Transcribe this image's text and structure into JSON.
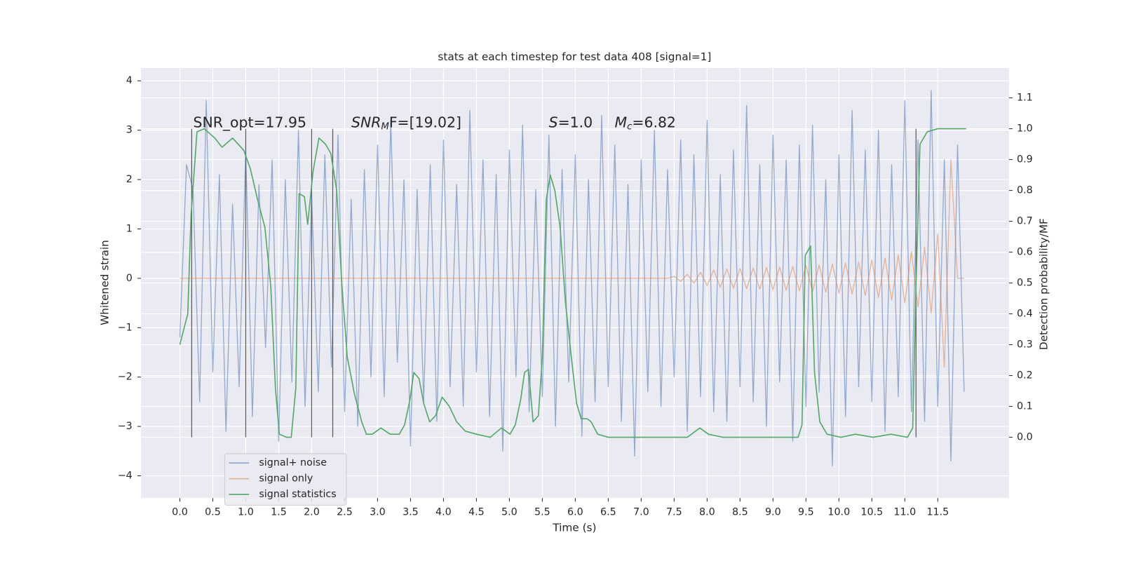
{
  "chart_data": {
    "type": "line",
    "title": "stats at each timestep for test data 408 [signal=1]",
    "xlabel": "Time (s)",
    "ylabel": "Whitened strain",
    "y2label": "Detection probability/MF",
    "x": [
      0.0,
      0.1,
      0.2,
      0.3,
      0.4,
      0.5,
      0.6,
      0.7,
      0.8,
      0.9,
      1.0,
      1.1,
      1.2,
      1.3,
      1.4,
      1.5,
      1.6,
      1.7,
      1.8,
      1.9,
      2.0,
      2.1,
      2.2,
      2.3,
      2.4,
      2.5,
      2.6,
      2.7,
      2.8,
      2.9,
      3.0,
      3.1,
      3.2,
      3.3,
      3.4,
      3.5,
      3.6,
      3.7,
      3.8,
      3.9,
      4.0,
      4.1,
      4.2,
      4.3,
      4.4,
      4.5,
      4.6,
      4.7,
      4.8,
      4.9,
      5.0,
      5.1,
      5.2,
      5.3,
      5.4,
      5.5,
      5.6,
      5.7,
      5.8,
      5.9,
      6.0,
      6.1,
      6.2,
      6.3,
      6.4,
      6.5,
      6.6,
      6.7,
      6.8,
      6.9,
      7.0,
      7.1,
      7.2,
      7.3,
      7.4,
      7.5,
      7.6,
      7.7,
      7.8,
      7.9,
      8.0,
      8.1,
      8.2,
      8.3,
      8.4,
      8.5,
      8.6,
      8.7,
      8.8,
      8.9,
      9.0,
      9.1,
      9.2,
      9.3,
      9.4,
      9.5,
      9.6,
      9.7,
      9.8,
      9.9,
      10.0,
      10.1,
      10.2,
      10.3,
      10.4,
      10.5,
      10.6,
      10.7,
      10.8,
      10.9,
      11.0,
      11.1,
      11.2,
      11.3,
      11.4,
      11.5,
      11.6,
      11.7,
      11.8,
      11.9
    ],
    "series": [
      {
        "name": "signal+ noise",
        "color": "#4c72b0",
        "values": [
          -1.2,
          2.3,
          1.8,
          -2.5,
          3.6,
          -1.9,
          2.1,
          -3.1,
          1.5,
          -2.2,
          2.6,
          -2.8,
          1.9,
          -1.4,
          2.4,
          -3.3,
          2.0,
          -2.1,
          3.0,
          -2.6,
          1.7,
          -2.3,
          2.5,
          -1.8,
          2.9,
          -2.7,
          1.6,
          -3.0,
          2.2,
          -2.0,
          2.7,
          -2.4,
          3.2,
          -1.7,
          2.0,
          -3.4,
          1.8,
          -2.5,
          2.3,
          -2.9,
          2.8,
          -2.2,
          1.9,
          -2.6,
          3.4,
          -1.9,
          2.4,
          -2.8,
          2.1,
          -3.5,
          2.6,
          -2.0,
          3.1,
          -2.7,
          1.8,
          -2.4,
          2.9,
          -3.0,
          2.2,
          -2.1,
          2.5,
          -3.2,
          2.0,
          -2.5,
          3.3,
          -2.2,
          2.7,
          -2.9,
          1.9,
          -3.6,
          2.4,
          -2.3,
          3.0,
          -2.6,
          2.2,
          -2.0,
          2.8,
          -3.1,
          2.5,
          -2.4,
          3.2,
          -2.7,
          2.1,
          -2.9,
          2.6,
          -2.2,
          3.5,
          -2.5,
          2.3,
          -3.0,
          2.9,
          -2.1,
          2.4,
          -3.3,
          2.7,
          -2.6,
          3.1,
          -2.3,
          2.0,
          -3.8,
          2.5,
          -2.8,
          3.4,
          -2.2,
          2.6,
          -2.5,
          3.0,
          -3.1,
          2.3,
          -2.4,
          3.6,
          -2.7,
          2.8,
          -2.9,
          3.8,
          -2.6,
          2.4,
          -3.7,
          2.7,
          -2.3
        ]
      },
      {
        "name": "signal only",
        "color": "#dd8452",
        "values": [
          0,
          0,
          0,
          0,
          0,
          0,
          0,
          0,
          0,
          0,
          0,
          0,
          0,
          0,
          0,
          0,
          0,
          0,
          0,
          0,
          0,
          0,
          0,
          0,
          0,
          0,
          0,
          0,
          0,
          0,
          0,
          0,
          0,
          0,
          0,
          0,
          0,
          0,
          0,
          0,
          0,
          0,
          0,
          0,
          0,
          0,
          0,
          0,
          0,
          0,
          0,
          0,
          0,
          0,
          0,
          0,
          0,
          0,
          0,
          0,
          0,
          0,
          0,
          0,
          0,
          0,
          0,
          0,
          0,
          0,
          0,
          0,
          0,
          0,
          0,
          0.04,
          -0.06,
          0.08,
          -0.1,
          0.12,
          -0.15,
          0.17,
          -0.18,
          0.19,
          -0.2,
          0.2,
          -0.21,
          0.21,
          -0.22,
          0.22,
          -0.23,
          0.23,
          -0.24,
          0.24,
          -0.25,
          0.26,
          -0.27,
          0.27,
          -0.28,
          0.29,
          -0.3,
          0.31,
          -0.32,
          0.33,
          -0.35,
          0.37,
          -0.39,
          0.41,
          -0.44,
          0.47,
          -0.5,
          0.54,
          -0.58,
          0.63,
          -0.7,
          0.9,
          -1.8,
          2.4,
          0.0,
          0.0
        ]
      },
      {
        "name": "signal statistics",
        "color": "#55a868",
        "axis": "y2",
        "x": [
          0.0,
          0.12,
          0.17,
          0.26,
          0.37,
          0.53,
          0.64,
          0.8,
          0.97,
          1.07,
          1.18,
          1.29,
          1.38,
          1.45,
          1.51,
          1.62,
          1.69,
          1.76,
          1.81,
          1.89,
          1.94,
          2.02,
          2.11,
          2.21,
          2.29,
          2.38,
          2.46,
          2.54,
          2.65,
          2.76,
          2.83,
          2.92,
          3.05,
          3.19,
          3.33,
          3.41,
          3.49,
          3.55,
          3.63,
          3.7,
          3.79,
          3.88,
          3.98,
          4.09,
          4.2,
          4.33,
          4.5,
          4.71,
          4.88,
          5.01,
          5.09,
          5.17,
          5.23,
          5.29,
          5.36,
          5.44,
          5.5,
          5.56,
          5.62,
          5.69,
          5.77,
          5.85,
          5.94,
          6.02,
          6.09,
          6.18,
          6.24,
          6.34,
          6.5,
          6.72,
          7.05,
          7.7,
          7.89,
          8.02,
          8.24,
          9.0,
          9.38,
          9.44,
          9.49,
          9.57,
          9.63,
          9.71,
          9.82,
          10.03,
          10.25,
          10.52,
          10.79,
          11.04,
          11.12,
          11.17,
          11.23,
          11.34,
          11.5,
          11.93
        ],
        "values": [
          0.3,
          0.4,
          0.72,
          0.99,
          1.0,
          0.97,
          0.94,
          0.97,
          0.93,
          0.87,
          0.77,
          0.68,
          0.49,
          0.16,
          0.01,
          0.0,
          0.0,
          0.16,
          0.79,
          0.78,
          0.69,
          0.86,
          0.97,
          0.95,
          0.92,
          0.8,
          0.49,
          0.26,
          0.14,
          0.05,
          0.01,
          0.01,
          0.03,
          0.01,
          0.01,
          0.04,
          0.12,
          0.21,
          0.19,
          0.11,
          0.05,
          0.07,
          0.13,
          0.1,
          0.05,
          0.02,
          0.01,
          0.0,
          0.03,
          0.01,
          0.04,
          0.12,
          0.21,
          0.22,
          0.05,
          0.07,
          0.26,
          0.77,
          0.85,
          0.8,
          0.68,
          0.44,
          0.26,
          0.11,
          0.06,
          0.06,
          0.05,
          0.01,
          0.0,
          0.0,
          0.0,
          0.0,
          0.03,
          0.01,
          0.0,
          0.0,
          0.0,
          0.04,
          0.59,
          0.62,
          0.21,
          0.05,
          0.01,
          0.0,
          0.01,
          0.0,
          0.01,
          0.0,
          0.03,
          0.49,
          0.95,
          0.99,
          1.0,
          1.0
        ]
      }
    ],
    "vlines": [
      0.18,
      1.0,
      2.0,
      2.32,
      11.17
    ],
    "annotations": [
      {
        "text": "SNR_opt=17.95"
      },
      {
        "main": "SNR",
        "sub": "M",
        "tail": "F=[19.02]"
      },
      {
        "main": "S",
        "tail": "=1.0"
      },
      {
        "main": "M",
        "sub": "c",
        "tail": "=6.82"
      }
    ],
    "xlim": [
      -0.59,
      12.58
    ],
    "ylim": [
      -4.45,
      4.26
    ],
    "y2lim": [
      -0.197,
      1.197
    ],
    "xticks": [
      {
        "value": 0,
        "label": "0.0"
      },
      0.5,
      {
        "value": 1,
        "label": "1.0"
      },
      1.5,
      {
        "value": 2,
        "label": "2.0"
      },
      2.5,
      {
        "value": 3,
        "label": "3.0"
      },
      3.5,
      {
        "value": 4,
        "label": "4.0"
      },
      4.5,
      {
        "value": 5,
        "label": "5.0"
      },
      5.5,
      {
        "value": 6,
        "label": "6.0"
      },
      6.5,
      {
        "value": 7,
        "label": "7.0"
      },
      7.5,
      {
        "value": 8,
        "label": "8.0"
      },
      8.5,
      {
        "value": 9,
        "label": "9.0"
      },
      9.5,
      {
        "value": 10,
        "label": "10.0"
      },
      10.5,
      {
        "value": 11,
        "label": "11.0"
      },
      11.5
    ],
    "yticks": [
      {
        "value": -4,
        "label": "−4"
      },
      {
        "value": -3,
        "label": "−3"
      },
      {
        "value": -2,
        "label": "−2"
      },
      {
        "value": -1,
        "label": "−1"
      },
      0,
      1,
      2,
      3,
      4
    ],
    "y2ticks": [
      {
        "value": 0,
        "label": "0.0"
      },
      0.1,
      0.2,
      0.3,
      0.4,
      0.5,
      0.6,
      0.7,
      0.8,
      0.9,
      {
        "value": 1,
        "label": "1.0"
      },
      1.1
    ],
    "grid": true,
    "legend": "lower left"
  }
}
